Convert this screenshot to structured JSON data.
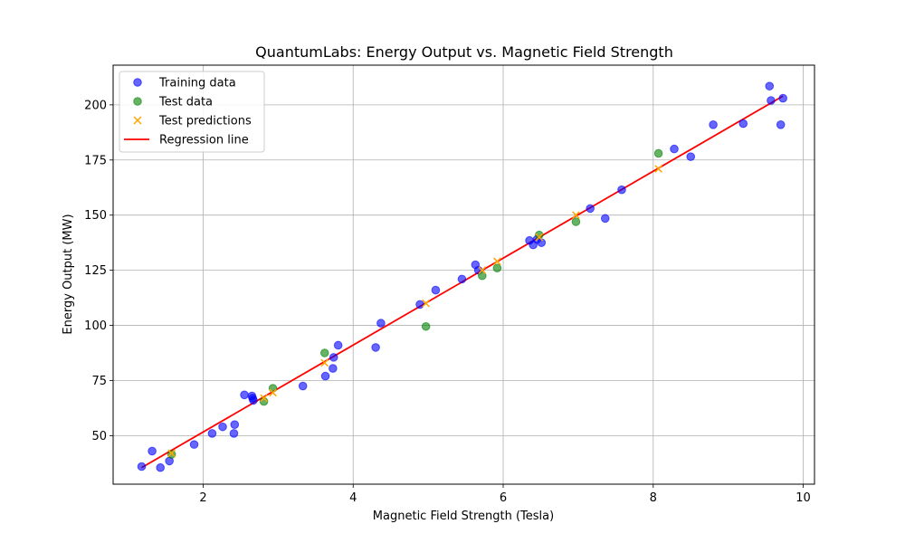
{
  "chart_data": {
    "type": "scatter",
    "title": "QuantumLabs: Energy Output vs. Magnetic Field Strength",
    "xlabel": "Magnetic Field Strength (Tesla)",
    "ylabel": "Energy Output (MW)",
    "xlim": [
      0.8,
      10.15
    ],
    "ylim": [
      28,
      218
    ],
    "xticks": [
      2,
      4,
      6,
      8,
      10
    ],
    "yticks": [
      50,
      75,
      100,
      125,
      150,
      175,
      200
    ],
    "grid": true,
    "legend_position": "top-left",
    "series": [
      {
        "name": "Training data",
        "kind": "points",
        "marker": "circle",
        "color": "#0000ff",
        "points": [
          [
            1.18,
            36
          ],
          [
            1.32,
            43
          ],
          [
            1.43,
            35.5
          ],
          [
            1.55,
            38.5
          ],
          [
            1.88,
            46
          ],
          [
            2.12,
            51
          ],
          [
            2.26,
            54
          ],
          [
            2.41,
            51
          ],
          [
            2.42,
            55
          ],
          [
            2.55,
            68.5
          ],
          [
            2.65,
            68
          ],
          [
            2.66,
            67
          ],
          [
            2.67,
            66
          ],
          [
            3.33,
            72.5
          ],
          [
            3.63,
            77
          ],
          [
            3.73,
            80.5
          ],
          [
            3.74,
            85.5
          ],
          [
            3.8,
            91
          ],
          [
            4.3,
            90
          ],
          [
            4.37,
            101
          ],
          [
            4.89,
            109.5
          ],
          [
            5.1,
            116
          ],
          [
            5.45,
            121
          ],
          [
            5.63,
            127.5
          ],
          [
            5.67,
            125
          ],
          [
            6.35,
            138.5
          ],
          [
            6.4,
            136.5
          ],
          [
            6.45,
            139
          ],
          [
            6.51,
            137.5
          ],
          [
            7.16,
            153
          ],
          [
            7.36,
            148.5
          ],
          [
            7.58,
            161.5
          ],
          [
            8.28,
            180
          ],
          [
            8.5,
            176.5
          ],
          [
            8.8,
            191
          ],
          [
            9.2,
            191.5
          ],
          [
            9.55,
            208.5
          ],
          [
            9.57,
            202
          ],
          [
            9.7,
            191
          ],
          [
            9.73,
            203
          ]
        ]
      },
      {
        "name": "Test data",
        "kind": "points",
        "marker": "circle",
        "color": "#008000",
        "points": [
          [
            1.58,
            41.5
          ],
          [
            2.81,
            65.5
          ],
          [
            2.93,
            71.5
          ],
          [
            3.62,
            87.5
          ],
          [
            4.97,
            99.5
          ],
          [
            5.72,
            122.5
          ],
          [
            5.92,
            126
          ],
          [
            6.48,
            141
          ],
          [
            6.97,
            147
          ],
          [
            8.07,
            178
          ]
        ]
      },
      {
        "name": "Test predictions",
        "kind": "points",
        "marker": "x",
        "color": "#ffa500",
        "points": [
          [
            1.58,
            42
          ],
          [
            2.81,
            67
          ],
          [
            2.93,
            69.5
          ],
          [
            3.62,
            83
          ],
          [
            4.97,
            110
          ],
          [
            5.72,
            125
          ],
          [
            5.92,
            129
          ],
          [
            6.48,
            140
          ],
          [
            6.97,
            150
          ],
          [
            8.07,
            171
          ]
        ]
      },
      {
        "name": "Regression line",
        "kind": "line",
        "color": "#ff0000",
        "points": [
          [
            1.18,
            35.5
          ],
          [
            9.73,
            204
          ]
        ]
      }
    ]
  }
}
